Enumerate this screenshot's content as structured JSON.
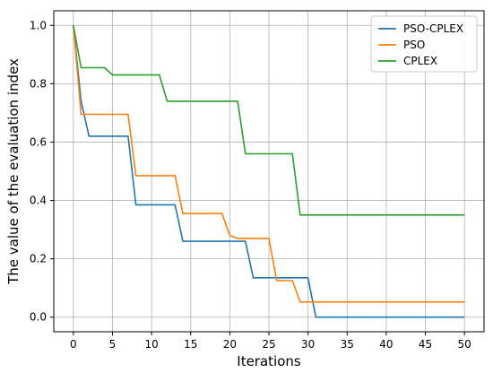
{
  "chart_data": {
    "type": "line",
    "xlabel": "Iterations",
    "ylabel": "The value of the evaluation index",
    "xlim": [
      -2.5,
      52.5
    ],
    "ylim": [
      -0.05,
      1.05
    ],
    "xticks": [
      0,
      5,
      10,
      15,
      20,
      25,
      30,
      35,
      40,
      45,
      50
    ],
    "yticks": [
      0.0,
      0.2,
      0.4,
      0.6,
      0.8,
      1.0
    ],
    "xtick_labels": [
      "0",
      "5",
      "10",
      "15",
      "20",
      "25",
      "30",
      "35",
      "40",
      "45",
      "50"
    ],
    "ytick_labels": [
      "0.0",
      "0.2",
      "0.4",
      "0.6",
      "0.8",
      "1.0"
    ],
    "grid": true,
    "legend_position": "top-right",
    "series": [
      {
        "name": "PSO-CPLEX",
        "color": "#1f77b4",
        "x": [
          0,
          1,
          2,
          7,
          8,
          13,
          14,
          22,
          23,
          30,
          31,
          50
        ],
        "y": [
          1.0,
          0.74,
          0.62,
          0.62,
          0.385,
          0.385,
          0.26,
          0.26,
          0.135,
          0.135,
          0.0,
          0.0
        ]
      },
      {
        "name": "PSO",
        "color": "#ff7f0e",
        "x": [
          0,
          1,
          7,
          8,
          13,
          14,
          19,
          20,
          21,
          25,
          26,
          28,
          29,
          50
        ],
        "y": [
          1.0,
          0.695,
          0.695,
          0.485,
          0.485,
          0.355,
          0.355,
          0.28,
          0.27,
          0.27,
          0.125,
          0.125,
          0.052,
          0.052
        ]
      },
      {
        "name": "CPLEX",
        "color": "#2ca02c",
        "x": [
          0,
          1,
          4,
          5,
          11,
          12,
          21,
          22,
          28,
          29,
          50
        ],
        "y": [
          1.0,
          0.855,
          0.855,
          0.83,
          0.83,
          0.74,
          0.74,
          0.56,
          0.56,
          0.35,
          0.35
        ]
      }
    ]
  }
}
